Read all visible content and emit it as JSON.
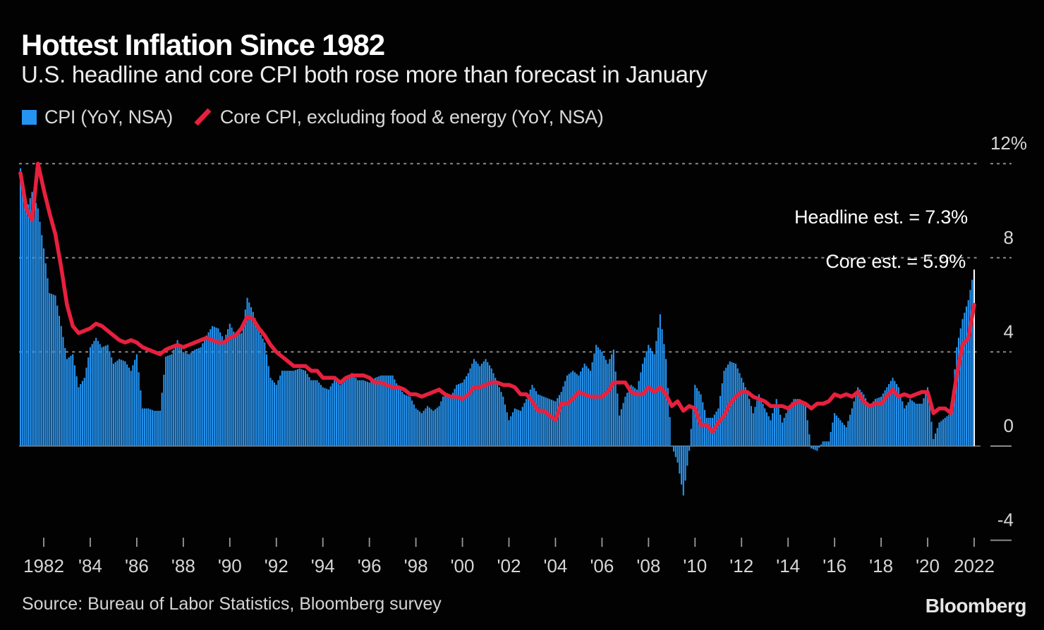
{
  "header": {
    "title": "Hottest Inflation Since 1982",
    "subtitle": "U.S. headline and core CPI both rose more than forecast in January"
  },
  "legend": [
    {
      "label": "CPI (YoY, NSA)",
      "marker": "square",
      "color": "#2593f0"
    },
    {
      "label": "Core CPI, excluding food & energy (YoY, NSA)",
      "marker": "slash",
      "color": "#e8203e"
    }
  ],
  "annotations": {
    "headline": "Headline est. = 7.3%",
    "core": "Core est. = 5.9%"
  },
  "source": "Source: Bureau of Labor Statistics, Bloomberg survey",
  "logo": "Bloomberg",
  "colors": {
    "background": "#020202",
    "bar": "#2593f0",
    "last_bar": "#ffffff",
    "line": "#e8203e",
    "grid": "#8a8a8a",
    "zero_line": "#5f5f5f",
    "tick": "#9a9a9a",
    "axis_text": "#d6d6d6"
  },
  "chart_data": {
    "type": "bar+line",
    "title": "Hottest Inflation Since 1982",
    "x_start": 1981.0,
    "x_step_years": 0.25,
    "x_end": 2022.0,
    "ylim": [
      -4,
      12
    ],
    "grid": "dashed horizontal at 12, 8, 4; solid zero line",
    "legend_position": "top-left",
    "y_ticks": [
      {
        "v": 12,
        "label": "12%",
        "line": "dashed"
      },
      {
        "v": 8,
        "label": "8",
        "line": "dashed"
      },
      {
        "v": 4,
        "label": "4",
        "line": "dashed"
      },
      {
        "v": 0,
        "label": "0",
        "line": "solid"
      },
      {
        "v": -4,
        "label": "-4",
        "line": "none"
      }
    ],
    "x_ticks": [
      {
        "x": 1982,
        "label": "1982"
      },
      {
        "x": 1984,
        "label": "'84"
      },
      {
        "x": 1986,
        "label": "'86"
      },
      {
        "x": 1988,
        "label": "'88"
      },
      {
        "x": 1990,
        "label": "'90"
      },
      {
        "x": 1992,
        "label": "'92"
      },
      {
        "x": 1994,
        "label": "'94"
      },
      {
        "x": 1996,
        "label": "'96"
      },
      {
        "x": 1998,
        "label": "'98"
      },
      {
        "x": 2000,
        "label": "'00"
      },
      {
        "x": 2002,
        "label": "'02"
      },
      {
        "x": 2004,
        "label": "'04"
      },
      {
        "x": 2006,
        "label": "'06"
      },
      {
        "x": 2008,
        "label": "'08"
      },
      {
        "x": 2010,
        "label": "'10"
      },
      {
        "x": 2012,
        "label": "'12"
      },
      {
        "x": 2014,
        "label": "'14"
      },
      {
        "x": 2016,
        "label": "'16"
      },
      {
        "x": 2018,
        "label": "'18"
      },
      {
        "x": 2020,
        "label": "'20"
      },
      {
        "x": 2022,
        "label": "2022"
      }
    ],
    "series": [
      {
        "name": "CPI (YoY, NSA)",
        "type": "bar",
        "color": "#2593f0",
        "last_point_color": "#ffffff",
        "sampling": "quarterly Jan/Apr/Jul/Oct 1981 ... plus Jan 2022",
        "values": [
          11.8,
          10.0,
          10.8,
          10.1,
          8.4,
          6.5,
          6.4,
          5.1,
          3.7,
          3.9,
          2.5,
          2.9,
          4.2,
          4.6,
          4.2,
          4.3,
          3.5,
          3.7,
          3.6,
          3.2,
          3.9,
          1.6,
          1.6,
          1.5,
          1.5,
          3.8,
          3.9,
          4.5,
          4.0,
          3.9,
          4.1,
          4.2,
          4.7,
          5.1,
          5.0,
          4.5,
          5.2,
          4.7,
          4.8,
          6.3,
          5.7,
          4.9,
          4.4,
          2.9,
          2.6,
          3.2,
          3.2,
          3.2,
          3.3,
          3.2,
          2.8,
          2.8,
          2.5,
          2.4,
          2.8,
          2.6,
          2.8,
          3.1,
          2.8,
          2.8,
          2.7,
          2.9,
          3.0,
          3.0,
          3.0,
          2.5,
          2.2,
          2.1,
          1.6,
          1.4,
          1.7,
          1.5,
          1.7,
          2.3,
          2.1,
          2.6,
          2.7,
          3.1,
          3.7,
          3.4,
          3.7,
          3.3,
          2.7,
          2.1,
          1.1,
          1.6,
          1.5,
          2.0,
          2.6,
          2.2,
          2.1,
          2.0,
          1.9,
          2.3,
          3.0,
          3.2,
          3.0,
          3.5,
          3.2,
          4.3,
          4.0,
          3.5,
          4.1,
          1.3,
          2.1,
          2.6,
          2.4,
          3.5,
          4.3,
          3.9,
          5.6,
          3.7,
          0.0,
          -0.7,
          -2.1,
          -0.2,
          2.6,
          2.2,
          1.2,
          1.2,
          1.6,
          3.2,
          3.6,
          3.5,
          2.9,
          2.3,
          1.4,
          2.2,
          1.6,
          1.1,
          2.0,
          1.0,
          1.6,
          2.0,
          2.0,
          1.7,
          -0.1,
          -0.2,
          0.2,
          0.2,
          1.4,
          1.1,
          0.8,
          1.6,
          2.5,
          2.2,
          1.7,
          2.0,
          2.1,
          2.5,
          2.9,
          2.5,
          1.6,
          2.0,
          1.8,
          1.8,
          2.5,
          0.3,
          1.0,
          1.2,
          1.4,
          4.2,
          5.4,
          6.2,
          7.5
        ]
      },
      {
        "name": "Core CPI, excluding food & energy (YoY, NSA)",
        "type": "line",
        "color": "#e8203e",
        "sampling": "quarterly Jan/Apr/Jul/Oct 1981 ... plus Jan 2022",
        "values": [
          11.6,
          10.1,
          9.6,
          12.0,
          10.9,
          9.9,
          9.0,
          7.6,
          6.0,
          5.1,
          4.8,
          4.9,
          5.0,
          5.2,
          5.1,
          4.9,
          4.7,
          4.5,
          4.4,
          4.5,
          4.4,
          4.2,
          4.1,
          4.0,
          3.9,
          4.1,
          4.2,
          4.3,
          4.2,
          4.3,
          4.4,
          4.5,
          4.6,
          4.5,
          4.4,
          4.4,
          4.6,
          4.7,
          5.0,
          5.5,
          5.4,
          5.0,
          4.7,
          4.3,
          4.0,
          3.8,
          3.6,
          3.4,
          3.4,
          3.4,
          3.2,
          3.2,
          2.9,
          2.9,
          2.9,
          2.7,
          2.9,
          3.0,
          3.0,
          3.0,
          2.9,
          2.7,
          2.7,
          2.6,
          2.5,
          2.5,
          2.4,
          2.2,
          2.2,
          2.1,
          2.2,
          2.3,
          2.4,
          2.2,
          2.1,
          2.1,
          2.0,
          2.2,
          2.5,
          2.5,
          2.6,
          2.7,
          2.7,
          2.6,
          2.6,
          2.5,
          2.2,
          2.2,
          1.9,
          1.5,
          1.5,
          1.3,
          1.1,
          1.8,
          1.8,
          2.0,
          2.3,
          2.2,
          2.1,
          2.1,
          2.1,
          2.3,
          2.7,
          2.7,
          2.7,
          2.3,
          2.2,
          2.2,
          2.5,
          2.3,
          2.5,
          2.2,
          1.7,
          1.9,
          1.5,
          1.7,
          1.6,
          0.9,
          0.9,
          0.6,
          1.0,
          1.3,
          1.8,
          2.1,
          2.3,
          2.3,
          2.1,
          2.0,
          1.9,
          1.7,
          1.7,
          1.7,
          1.6,
          1.8,
          1.9,
          1.8,
          1.6,
          1.8,
          1.8,
          1.9,
          2.2,
          2.1,
          2.2,
          2.1,
          2.3,
          1.9,
          1.7,
          1.8,
          1.8,
          2.1,
          2.4,
          2.1,
          2.2,
          2.1,
          2.2,
          2.3,
          2.3,
          1.4,
          1.6,
          1.6,
          1.4,
          3.0,
          4.3,
          4.6,
          6.0
        ]
      }
    ]
  }
}
